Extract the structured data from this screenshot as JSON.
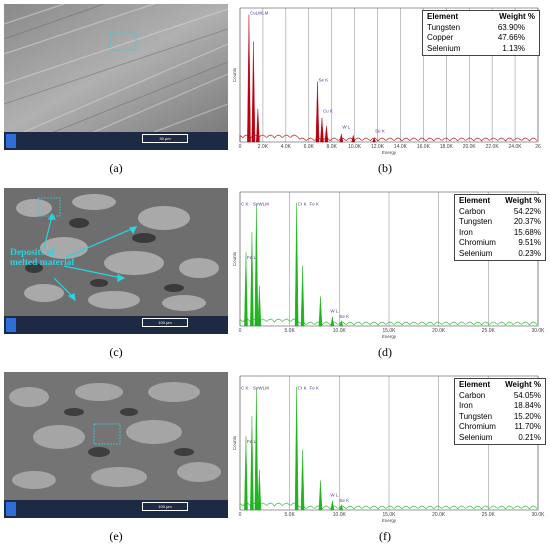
{
  "panels": [
    {
      "sem_caption": "(a)",
      "eds_caption": "(b)",
      "scale_bar": "30 μm",
      "annotation": "",
      "table": {
        "header": [
          "Element",
          "Weight %"
        ],
        "rows": [
          {
            "element": "Tungsten",
            "weight": "63.90%"
          },
          {
            "element": "Copper",
            "weight": "47.66%"
          },
          {
            "element": "Selenium",
            "weight": "1.13%"
          }
        ]
      },
      "peak_labels": [
        "CuLWLM",
        "Se K",
        "Cu K",
        "W L",
        "Se K"
      ],
      "x_ticks": [
        "0",
        "2.0K",
        "4.0K",
        "6.0K",
        "8.0K",
        "10.0K",
        "12.0K",
        "14.0K",
        "16.0K",
        "18.0K",
        "20.0K",
        "22.0K",
        "24.0K",
        "26"
      ],
      "x_label": "Energy",
      "y_label": "Counts",
      "color": "#b8000f"
    },
    {
      "sem_caption": "(c)",
      "eds_caption": "(d)",
      "scale_bar": "100 μm",
      "annotation": "Deposits of melted material",
      "table": {
        "header": [
          "Element",
          "Weight %"
        ],
        "rows": [
          {
            "element": "Carbon",
            "weight": "54.22%"
          },
          {
            "element": "Tungsten",
            "weight": "20.37%"
          },
          {
            "element": "Iron",
            "weight": "15.68%"
          },
          {
            "element": "Chromium",
            "weight": "9.51%"
          },
          {
            "element": "Selenium",
            "weight": "0.23%"
          }
        ]
      },
      "peak_labels": [
        "C K",
        "SeWLM",
        "Cr K",
        "Fe K",
        "Fe L",
        "W L",
        "Se K"
      ],
      "x_ticks": [
        "0",
        "5.0K",
        "10.0K",
        "15.0K",
        "20.0K",
        "25.0K",
        "30.0K"
      ],
      "x_label": "Energy",
      "y_label": "Counts",
      "color": "#1fb31f"
    },
    {
      "sem_caption": "(e)",
      "eds_caption": "(f)",
      "scale_bar": "100 μm",
      "annotation": "",
      "table": {
        "header": [
          "Element",
          "Weight %"
        ],
        "rows": [
          {
            "element": "Carbon",
            "weight": "54.05%"
          },
          {
            "element": "Iron",
            "weight": "18.84%"
          },
          {
            "element": "Tungsten",
            "weight": "15.20%"
          },
          {
            "element": "Chromium",
            "weight": "11.70%"
          },
          {
            "element": "Selenium",
            "weight": "0.21%"
          }
        ]
      },
      "peak_labels": [
        "C K",
        "SeWLM",
        "Cr K",
        "Fe K",
        "Fe L",
        "W L",
        "Se K"
      ],
      "x_ticks": [
        "0",
        "5.0K",
        "10.0K",
        "15.0K",
        "20.0K",
        "25.0K",
        "30.0K"
      ],
      "x_label": "Energy",
      "y_label": "Counts",
      "color": "#1fb31f"
    }
  ]
}
